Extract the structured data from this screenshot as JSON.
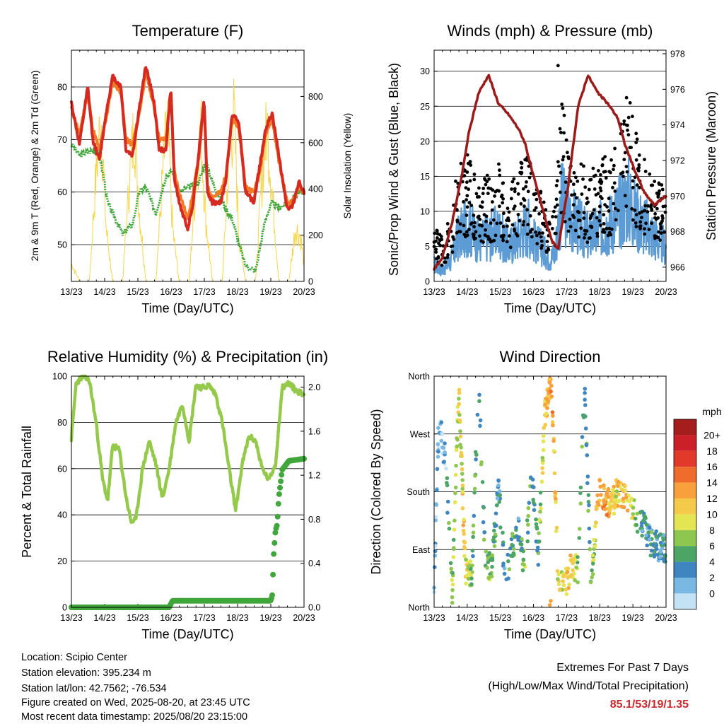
{
  "xtick_labels": [
    "13/23",
    "14/23",
    "15/23",
    "16/23",
    "17/23",
    "18/23",
    "19/23",
    "20/23"
  ],
  "panels": {
    "temperature": {
      "title": "Temperature (F)",
      "xlabel": "Time (Day/UTC)",
      "ylabel_left": "2m & 9m T (Red, Orange) & 2m Td (Green)",
      "ylabel_right": "Solar Insolation (Yellow)",
      "yticks_left": [
        50,
        60,
        70,
        80
      ],
      "yticks_right": [
        0,
        200,
        400,
        600,
        800
      ]
    },
    "winds": {
      "title": "Winds (mph) & Pressure (mb)",
      "xlabel": "Time (Day/UTC)",
      "ylabel_left": "Sonic/Prop Wind & Gust (Blue, Black)",
      "ylabel_right": "Station Pressure (Maroon)",
      "yticks_left": [
        0,
        5,
        10,
        15,
        20,
        25,
        30
      ],
      "yticks_right": [
        966,
        968,
        970,
        972,
        974,
        976,
        978
      ]
    },
    "humidity": {
      "title": "Relative Humidity (%) & Precipitation (in)",
      "xlabel": "Time (Day/UTC)",
      "ylabel_left": "Percent & Total Rainfall",
      "yticks_left": [
        0,
        20,
        40,
        60,
        80,
        100
      ],
      "yticks_right": [
        "0.0",
        "0.4",
        "0.8",
        "1.2",
        "1.6",
        "2.0"
      ]
    },
    "direction": {
      "title": "Wind Direction",
      "xlabel": "Time (Day/UTC)",
      "ylabel_left": "Direction (Colored By Speed)",
      "ytick_labels": [
        "North",
        "East",
        "South",
        "West",
        "North"
      ],
      "colorbar_title": "mph",
      "colorbar_labels": [
        "20+",
        "18",
        "16",
        "14",
        "12",
        "10",
        "8",
        "6",
        "4",
        "2",
        "0"
      ],
      "colorbar_colors": [
        "#a51d1d",
        "#cb2027",
        "#e23a2a",
        "#f06c2c",
        "#f8a13c",
        "#f5c94a",
        "#e3e553",
        "#8ec750",
        "#4da565",
        "#3f86c0",
        "#7ab8e4",
        "#c3e2f6"
      ]
    }
  },
  "footer": {
    "location": "Location: Scipio Center",
    "elevation": "Station elevation: 395.234 m",
    "latlon": "Station lat/lon: 42.7562; -76.534",
    "created": "Figure created on Wed, 2025-08-20, at 23:45 UTC",
    "recent": "Most recent data timestamp: 2025/08/20 23:15:00",
    "extremes_title": "Extremes For Past 7 Days",
    "extremes_sub": "(High/Low/Max Wind/Total Precipitation)",
    "extremes_values": "85.1/53/19/1.35"
  },
  "chart_data": [
    {
      "type": "line",
      "title": "Temperature (F)",
      "x_range_days": [
        13.958,
        20.958
      ],
      "ylim": [
        43,
        87
      ],
      "y2lim": [
        0,
        1000
      ],
      "series": [
        {
          "name": "2m T (Red)",
          "color": "#d42a22",
          "x": [
            13.958,
            14.2,
            14.45,
            14.6,
            14.8,
            15.0,
            15.2,
            15.45,
            15.6,
            15.8,
            16.0,
            16.2,
            16.45,
            16.6,
            16.8,
            16.95,
            17.05,
            17.2,
            17.45,
            17.6,
            17.8,
            17.95,
            18.05,
            18.2,
            18.45,
            18.6,
            18.8,
            19.0,
            19.2,
            19.45,
            19.6,
            19.8,
            20.0,
            20.2,
            20.45,
            20.6,
            20.8,
            20.958
          ],
          "y": [
            77,
            69,
            80,
            70,
            66,
            75,
            82,
            80,
            68,
            67,
            76,
            84,
            77,
            68,
            68,
            80,
            63,
            58,
            53,
            57,
            68,
            78,
            60,
            58,
            58,
            62,
            75,
            73,
            60,
            58,
            64,
            72,
            75,
            67,
            57,
            57,
            62,
            60
          ]
        },
        {
          "name": "9m T (Orange)",
          "color": "#f47a25",
          "x": [
            13.958,
            14.2,
            14.45,
            14.6,
            14.8,
            15.0,
            15.2,
            15.45,
            15.6,
            15.8,
            16.0,
            16.2,
            16.45,
            16.6,
            16.8,
            16.95,
            17.05,
            17.2,
            17.45,
            17.6,
            17.8,
            17.95,
            18.05,
            18.2,
            18.45,
            18.6,
            18.8,
            19.0,
            19.2,
            19.45,
            19.6,
            19.8,
            20.0,
            20.2,
            20.45,
            20.6,
            20.8,
            20.958
          ],
          "y": [
            76,
            71,
            79,
            72,
            68,
            74,
            81,
            79,
            70,
            69,
            75,
            83,
            76,
            70,
            70,
            79,
            64,
            60,
            55,
            59,
            67,
            77,
            61,
            59,
            60,
            63,
            74,
            72,
            61,
            60,
            63,
            71,
            74,
            66,
            58,
            58,
            61,
            60
          ]
        },
        {
          "name": "2m Td (Green)",
          "color": "#41a63b",
          "x": [
            13.958,
            14.2,
            14.6,
            14.8,
            14.95,
            15.05,
            15.2,
            15.5,
            15.8,
            16.0,
            16.2,
            16.5,
            16.8,
            17.0,
            17.2,
            17.5,
            17.8,
            18.0,
            18.2,
            18.5,
            18.8,
            19.0,
            19.2,
            19.5,
            19.8,
            20.0,
            20.2,
            20.5,
            20.8,
            20.958
          ],
          "y": [
            69,
            67,
            68,
            67,
            62,
            58,
            56,
            52,
            54,
            60,
            61,
            56,
            63,
            64,
            60,
            61,
            62,
            66,
            62,
            58,
            55,
            50,
            46,
            45,
            55,
            58,
            57,
            58,
            60,
            60
          ]
        },
        {
          "name": "Solar Insolation (Yellow)",
          "color": "#f5d64b",
          "axis": "right",
          "x": [
            13.958,
            14.2,
            14.5,
            14.7,
            14.85,
            15.0,
            15.2,
            15.5,
            15.7,
            15.85,
            16.0,
            16.2,
            16.5,
            16.7,
            16.85,
            17.0,
            17.2,
            17.5,
            17.7,
            17.85,
            18.0,
            18.2,
            18.5,
            18.7,
            18.85,
            19.0,
            19.2,
            19.5,
            19.7,
            19.85,
            20.0,
            20.2,
            20.5,
            20.7,
            20.85,
            20.958
          ],
          "y": [
            100,
            0,
            0,
            600,
            930,
            300,
            0,
            0,
            550,
            880,
            400,
            0,
            0,
            580,
            900,
            300,
            0,
            0,
            560,
            850,
            350,
            0,
            0,
            700,
            920,
            250,
            0,
            0,
            600,
            870,
            500,
            0,
            0,
            300,
            250,
            100
          ]
        }
      ]
    },
    {
      "type": "line",
      "title": "Winds (mph) & Pressure (mb)",
      "x_range_days": [
        13.958,
        20.958
      ],
      "ylim": [
        0,
        33
      ],
      "y2lim": [
        965.2,
        978.2
      ],
      "series": [
        {
          "name": "Sonic/Prop Wind (Blue)",
          "color": "#5d9bd4",
          "x": [
            13.958,
            14.2,
            14.5,
            14.7,
            15.0,
            15.3,
            15.6,
            15.9,
            16.2,
            16.5,
            16.8,
            17.0,
            17.2,
            17.45,
            17.6,
            17.8,
            18.0,
            18.3,
            18.6,
            18.9,
            19.2,
            19.5,
            19.8,
            20.0,
            20.3,
            20.6,
            20.958
          ],
          "y": [
            3,
            2,
            4,
            8,
            10,
            7,
            8,
            9,
            6,
            8,
            10,
            7,
            6,
            4,
            5,
            14,
            12,
            10,
            8,
            9,
            10,
            12,
            15,
            12,
            10,
            8,
            6
          ]
        },
        {
          "name": "Gust (Black)",
          "color": "#000000",
          "x": [
            13.958,
            14.2,
            14.5,
            14.7,
            15.0,
            15.3,
            15.6,
            15.9,
            16.2,
            16.5,
            16.8,
            17.0,
            17.2,
            17.45,
            17.6,
            17.8,
            18.0,
            18.3,
            18.6,
            18.9,
            19.2,
            19.5,
            19.8,
            20.0,
            20.3,
            20.6,
            20.958
          ],
          "y": [
            6,
            5,
            8,
            14,
            14,
            11,
            12,
            13,
            10,
            13,
            14,
            11,
            10,
            7,
            8,
            20,
            16,
            14,
            12,
            13,
            14,
            16,
            22,
            18,
            14,
            12,
            10
          ]
        },
        {
          "name": "Station Pressure (Maroon)",
          "color": "#9b1b1b",
          "axis": "right",
          "x": [
            13.958,
            14.2,
            14.5,
            14.8,
            15.0,
            15.3,
            15.6,
            15.9,
            16.2,
            16.5,
            16.7,
            16.9,
            17.2,
            17.5,
            17.7,
            18.0,
            18.3,
            18.6,
            18.9,
            19.2,
            19.5,
            19.7,
            20.0,
            20.3,
            20.6,
            20.958
          ],
          "y": [
            965.9,
            966.5,
            968.5,
            971.2,
            973.5,
            975.8,
            976.8,
            975.2,
            974.6,
            973.8,
            973.0,
            971.5,
            969.5,
            967.5,
            967.0,
            970.5,
            975.0,
            976.8,
            975.8,
            975.2,
            974.4,
            973.0,
            971.5,
            970.2,
            969.5,
            970.0
          ]
        }
      ]
    },
    {
      "type": "line",
      "title": "Relative Humidity (%) & Precipitation (in)",
      "x_range_days": [
        13.958,
        20.958
      ],
      "ylim": [
        0,
        100
      ],
      "y2lim": [
        0,
        2.1
      ],
      "series": [
        {
          "name": "Relative Humidity",
          "color": "#95c94c",
          "x": [
            13.958,
            14.1,
            14.3,
            14.5,
            14.7,
            14.9,
            15.05,
            15.2,
            15.4,
            15.6,
            15.75,
            15.9,
            16.1,
            16.3,
            16.5,
            16.7,
            16.9,
            17.1,
            17.3,
            17.5,
            17.7,
            17.9,
            18.1,
            18.3,
            18.5,
            18.7,
            18.9,
            19.1,
            19.3,
            19.5,
            19.7,
            19.9,
            20.1,
            20.3,
            20.5,
            20.7,
            20.958
          ],
          "y": [
            73,
            97,
            100,
            98,
            80,
            55,
            46,
            70,
            68,
            48,
            37,
            38,
            60,
            72,
            62,
            47,
            60,
            80,
            88,
            72,
            96,
            95,
            96,
            92,
            80,
            60,
            42,
            62,
            74,
            72,
            60,
            55,
            62,
            95,
            97,
            94,
            92
          ]
        },
        {
          "name": "Total Rainfall",
          "color": "#41a63b",
          "axis": "right",
          "x": [
            13.958,
            16.9,
            17.0,
            19.95,
            20.0,
            20.05,
            20.1,
            20.15,
            20.2,
            20.3,
            20.5,
            20.958
          ],
          "y": [
            0.0,
            0.0,
            0.06,
            0.06,
            0.1,
            0.5,
            0.7,
            0.75,
            1.0,
            1.25,
            1.33,
            1.35
          ]
        }
      ]
    },
    {
      "type": "scatter",
      "title": "Wind Direction",
      "x_range_days": [
        13.958,
        20.958
      ],
      "ylim": [
        0,
        360
      ],
      "series": [
        {
          "name": "Wind Direction",
          "x": [
            13.958,
            14.1,
            14.3,
            14.5,
            14.7,
            14.9,
            15.1,
            15.3,
            15.5,
            15.7,
            15.9,
            16.1,
            16.3,
            16.5,
            16.7,
            16.9,
            17.1,
            17.3,
            17.5,
            17.7,
            17.9,
            18.1,
            18.3,
            18.5,
            18.7,
            18.9,
            19.1,
            19.3,
            19.5,
            19.7,
            19.9,
            20.1,
            20.3,
            20.5,
            20.7,
            20.958
          ],
          "y": [
            30,
            290,
            230,
            20,
            340,
            60,
            50,
            360,
            70,
            60,
            190,
            40,
            90,
            120,
            60,
            220,
            80,
            300,
            360,
            40,
            30,
            70,
            60,
            350,
            30,
            180,
            170,
            160,
            180,
            175,
            160,
            140,
            130,
            100,
            95,
            90
          ],
          "speed": [
            3,
            3,
            3,
            9,
            11,
            12,
            8,
            6,
            7,
            9,
            5,
            6,
            8,
            4,
            10,
            6,
            7,
            12,
            16,
            11,
            12,
            13,
            8,
            6,
            7,
            14,
            15,
            13,
            12,
            14,
            12,
            7,
            5,
            6,
            5,
            5
          ]
        }
      ]
    }
  ]
}
